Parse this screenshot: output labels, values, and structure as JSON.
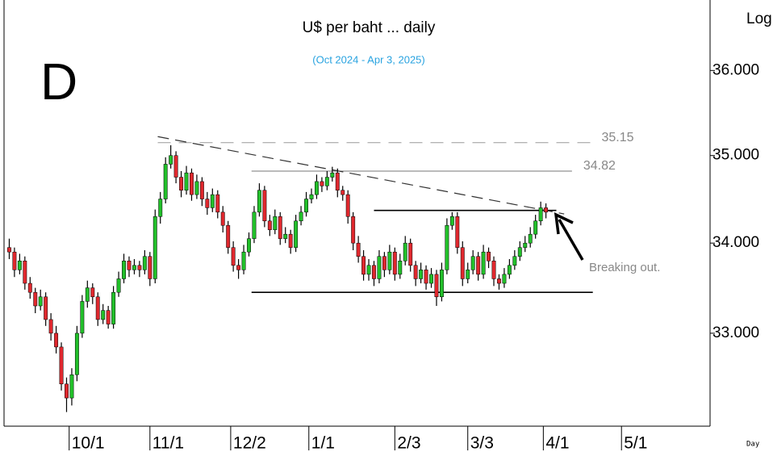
{
  "chart_data": {
    "type": "candlestick",
    "title": "U$ per baht ... daily",
    "subtitle": "(Oct 2024 - Apr 3, 2025)",
    "panel_label": "D",
    "scale_label": "Log",
    "period_label": "Day",
    "annotation": "Breaking out.",
    "log_scale": true,
    "ylim": [
      32.0,
      36.85
    ],
    "yticks": [
      {
        "value": 33,
        "label": "33.000"
      },
      {
        "value": 34,
        "label": "34.000"
      },
      {
        "value": 35,
        "label": "35.000"
      },
      {
        "value": 36,
        "label": "36.000"
      }
    ],
    "xlim": [
      5,
      276
    ],
    "xticks": [
      {
        "value": 30,
        "label": "10/1"
      },
      {
        "value": 61,
        "label": "11/1"
      },
      {
        "value": 92,
        "label": "12/2"
      },
      {
        "value": 122,
        "label": "1/1"
      },
      {
        "value": 155,
        "label": "2/3"
      },
      {
        "value": 183,
        "label": "3/3"
      },
      {
        "value": 212,
        "label": "4/1"
      },
      {
        "value": 242,
        "label": "5/1"
      }
    ],
    "up_color": "#22c02a",
    "down_color": "#e0282e",
    "x": [
      7,
      9,
      11,
      13,
      15,
      17,
      19,
      21,
      23,
      25,
      27,
      29,
      31,
      33,
      35,
      37,
      39,
      41,
      43,
      45,
      47,
      49,
      51,
      53,
      55,
      57,
      59,
      61,
      63,
      65,
      67,
      69,
      71,
      73,
      75,
      77,
      79,
      81,
      83,
      85,
      87,
      89,
      91,
      93,
      95,
      97,
      99,
      101,
      103,
      105,
      107,
      109,
      111,
      113,
      115,
      117,
      119,
      121,
      123,
      125,
      127,
      129,
      131,
      133,
      135,
      137,
      139,
      141,
      143,
      145,
      147,
      149,
      151,
      153,
      155,
      157,
      159,
      161,
      163,
      165,
      167,
      169,
      171,
      173,
      175,
      177,
      179,
      181,
      183,
      185,
      187,
      189,
      191,
      193,
      195,
      197,
      199,
      201,
      203,
      205,
      207,
      209,
      211,
      213
    ],
    "ohlc": [
      [
        33.95,
        34.05,
        33.82,
        33.9
      ],
      [
        33.9,
        33.95,
        33.62,
        33.7
      ],
      [
        33.7,
        33.88,
        33.65,
        33.8
      ],
      [
        33.8,
        33.85,
        33.48,
        33.55
      ],
      [
        33.55,
        33.62,
        33.38,
        33.45
      ],
      [
        33.45,
        33.5,
        33.22,
        33.3
      ],
      [
        33.3,
        33.48,
        33.25,
        33.4
      ],
      [
        33.4,
        33.45,
        33.08,
        33.15
      ],
      [
        33.15,
        33.22,
        32.92,
        33.0
      ],
      [
        33.0,
        33.08,
        32.78,
        32.85
      ],
      [
        32.85,
        32.9,
        32.38,
        32.45
      ],
      [
        32.45,
        32.52,
        32.15,
        32.3
      ],
      [
        32.3,
        32.62,
        32.22,
        32.55
      ],
      [
        32.55,
        33.08,
        32.48,
        33.0
      ],
      [
        33.0,
        33.42,
        32.95,
        33.35
      ],
      [
        33.35,
        33.58,
        33.28,
        33.5
      ],
      [
        33.5,
        33.55,
        33.32,
        33.4
      ],
      [
        33.4,
        33.45,
        33.08,
        33.15
      ],
      [
        33.15,
        33.32,
        33.1,
        33.25
      ],
      [
        33.25,
        33.3,
        33.05,
        33.1
      ],
      [
        33.1,
        33.52,
        33.05,
        33.45
      ],
      [
        33.45,
        33.68,
        33.4,
        33.6
      ],
      [
        33.6,
        33.88,
        33.55,
        33.8
      ],
      [
        33.8,
        33.85,
        33.62,
        33.7
      ],
      [
        33.7,
        33.82,
        33.65,
        33.75
      ],
      [
        33.75,
        33.8,
        33.62,
        33.7
      ],
      [
        33.7,
        33.92,
        33.65,
        33.85
      ],
      [
        33.85,
        33.9,
        33.52,
        33.6
      ],
      [
        33.6,
        34.38,
        33.55,
        34.3
      ],
      [
        34.3,
        34.58,
        34.22,
        34.5
      ],
      [
        34.5,
        34.98,
        34.45,
        34.9
      ],
      [
        34.9,
        35.12,
        34.85,
        35.0
      ],
      [
        35.0,
        35.05,
        34.68,
        34.75
      ],
      [
        34.75,
        34.82,
        34.52,
        34.6
      ],
      [
        34.6,
        34.88,
        34.55,
        34.8
      ],
      [
        34.8,
        34.85,
        34.48,
        34.55
      ],
      [
        34.55,
        34.78,
        34.5,
        34.7
      ],
      [
        34.7,
        34.75,
        34.42,
        34.5
      ],
      [
        34.5,
        34.58,
        34.32,
        34.4
      ],
      [
        34.4,
        34.62,
        34.35,
        34.55
      ],
      [
        34.55,
        34.6,
        34.28,
        34.35
      ],
      [
        34.35,
        34.42,
        34.12,
        34.2
      ],
      [
        34.2,
        34.25,
        33.88,
        33.95
      ],
      [
        33.95,
        34.02,
        33.68,
        33.75
      ],
      [
        33.75,
        33.82,
        33.6,
        33.7
      ],
      [
        33.7,
        33.98,
        33.65,
        33.9
      ],
      [
        33.9,
        34.12,
        33.85,
        34.05
      ],
      [
        34.05,
        34.42,
        34.0,
        34.35
      ],
      [
        34.35,
        34.68,
        34.3,
        34.6
      ],
      [
        34.6,
        34.65,
        34.18,
        34.25
      ],
      [
        34.25,
        34.32,
        34.08,
        34.15
      ],
      [
        34.15,
        34.38,
        34.1,
        34.3
      ],
      [
        34.3,
        34.35,
        33.98,
        34.05
      ],
      [
        34.05,
        34.18,
        34.0,
        34.1
      ],
      [
        34.1,
        34.15,
        33.88,
        33.95
      ],
      [
        33.95,
        34.32,
        33.9,
        34.25
      ],
      [
        34.25,
        34.42,
        34.2,
        34.35
      ],
      [
        34.35,
        34.58,
        34.3,
        34.5
      ],
      [
        34.5,
        34.62,
        34.45,
        34.55
      ],
      [
        34.55,
        34.78,
        34.5,
        34.7
      ],
      [
        34.7,
        34.75,
        34.58,
        34.65
      ],
      [
        34.65,
        34.82,
        34.6,
        34.75
      ],
      [
        34.75,
        34.87,
        34.7,
        34.8
      ],
      [
        34.8,
        34.85,
        34.52,
        34.6
      ],
      [
        34.6,
        34.65,
        34.48,
        34.55
      ],
      [
        34.55,
        34.6,
        34.22,
        34.3
      ],
      [
        34.3,
        34.35,
        33.92,
        34.0
      ],
      [
        34.0,
        34.08,
        33.78,
        33.85
      ],
      [
        33.85,
        33.92,
        33.58,
        33.65
      ],
      [
        33.65,
        33.82,
        33.58,
        33.75
      ],
      [
        33.75,
        33.8,
        33.52,
        33.6
      ],
      [
        33.6,
        33.92,
        33.55,
        33.85
      ],
      [
        33.85,
        33.9,
        33.62,
        33.7
      ],
      [
        33.7,
        33.98,
        33.65,
        33.9
      ],
      [
        33.9,
        33.95,
        33.58,
        33.65
      ],
      [
        33.65,
        33.88,
        33.6,
        33.8
      ],
      [
        33.8,
        34.08,
        33.75,
        34.0
      ],
      [
        34.0,
        34.05,
        33.68,
        33.75
      ],
      [
        33.75,
        33.8,
        33.52,
        33.6
      ],
      [
        33.6,
        33.78,
        33.55,
        33.7
      ],
      [
        33.7,
        33.75,
        33.48,
        33.55
      ],
      [
        33.55,
        33.72,
        33.5,
        33.65
      ],
      [
        33.65,
        33.7,
        33.3,
        33.4
      ],
      [
        33.4,
        33.78,
        33.35,
        33.7
      ],
      [
        33.7,
        34.28,
        33.65,
        34.2
      ],
      [
        34.2,
        34.35,
        34.15,
        34.3
      ],
      [
        34.3,
        34.35,
        33.88,
        33.95
      ],
      [
        33.95,
        34.02,
        33.52,
        33.6
      ],
      [
        33.6,
        33.78,
        33.55,
        33.7
      ],
      [
        33.7,
        33.92,
        33.65,
        33.85
      ],
      [
        33.85,
        33.9,
        33.58,
        33.65
      ],
      [
        33.65,
        33.98,
        33.6,
        33.9
      ],
      [
        33.9,
        33.95,
        33.72,
        33.8
      ],
      [
        33.8,
        33.85,
        33.52,
        33.6
      ],
      [
        33.6,
        33.65,
        33.48,
        33.55
      ],
      [
        33.55,
        33.72,
        33.5,
        33.65
      ],
      [
        33.65,
        33.82,
        33.6,
        33.75
      ],
      [
        33.75,
        33.92,
        33.7,
        33.85
      ],
      [
        33.85,
        34.02,
        33.8,
        33.95
      ],
      [
        33.95,
        34.08,
        33.9,
        34.0
      ],
      [
        34.0,
        34.18,
        33.95,
        34.1
      ],
      [
        34.1,
        34.32,
        34.05,
        34.25
      ],
      [
        34.25,
        34.47,
        34.2,
        34.4
      ],
      [
        34.4,
        34.45,
        34.28,
        34.35
      ]
    ],
    "levels": [
      {
        "value": 35.15,
        "label": "35.15",
        "x": [
          64,
          230
        ],
        "color": "#999999",
        "dashed": true
      },
      {
        "value": 34.82,
        "label": "34.82",
        "x": [
          100,
          223
        ],
        "color": "#777777",
        "dashed": false
      },
      {
        "value": 34.37,
        "x": [
          147,
          217
        ],
        "color": "#000000",
        "dashed": false
      },
      {
        "value": 33.45,
        "x": [
          100,
          231
        ],
        "color": "#000000",
        "dashed": false
      }
    ],
    "trendline": {
      "x": [
        64,
        220
      ],
      "values": [
        35.22,
        34.33
      ],
      "color": "#333333"
    }
  }
}
